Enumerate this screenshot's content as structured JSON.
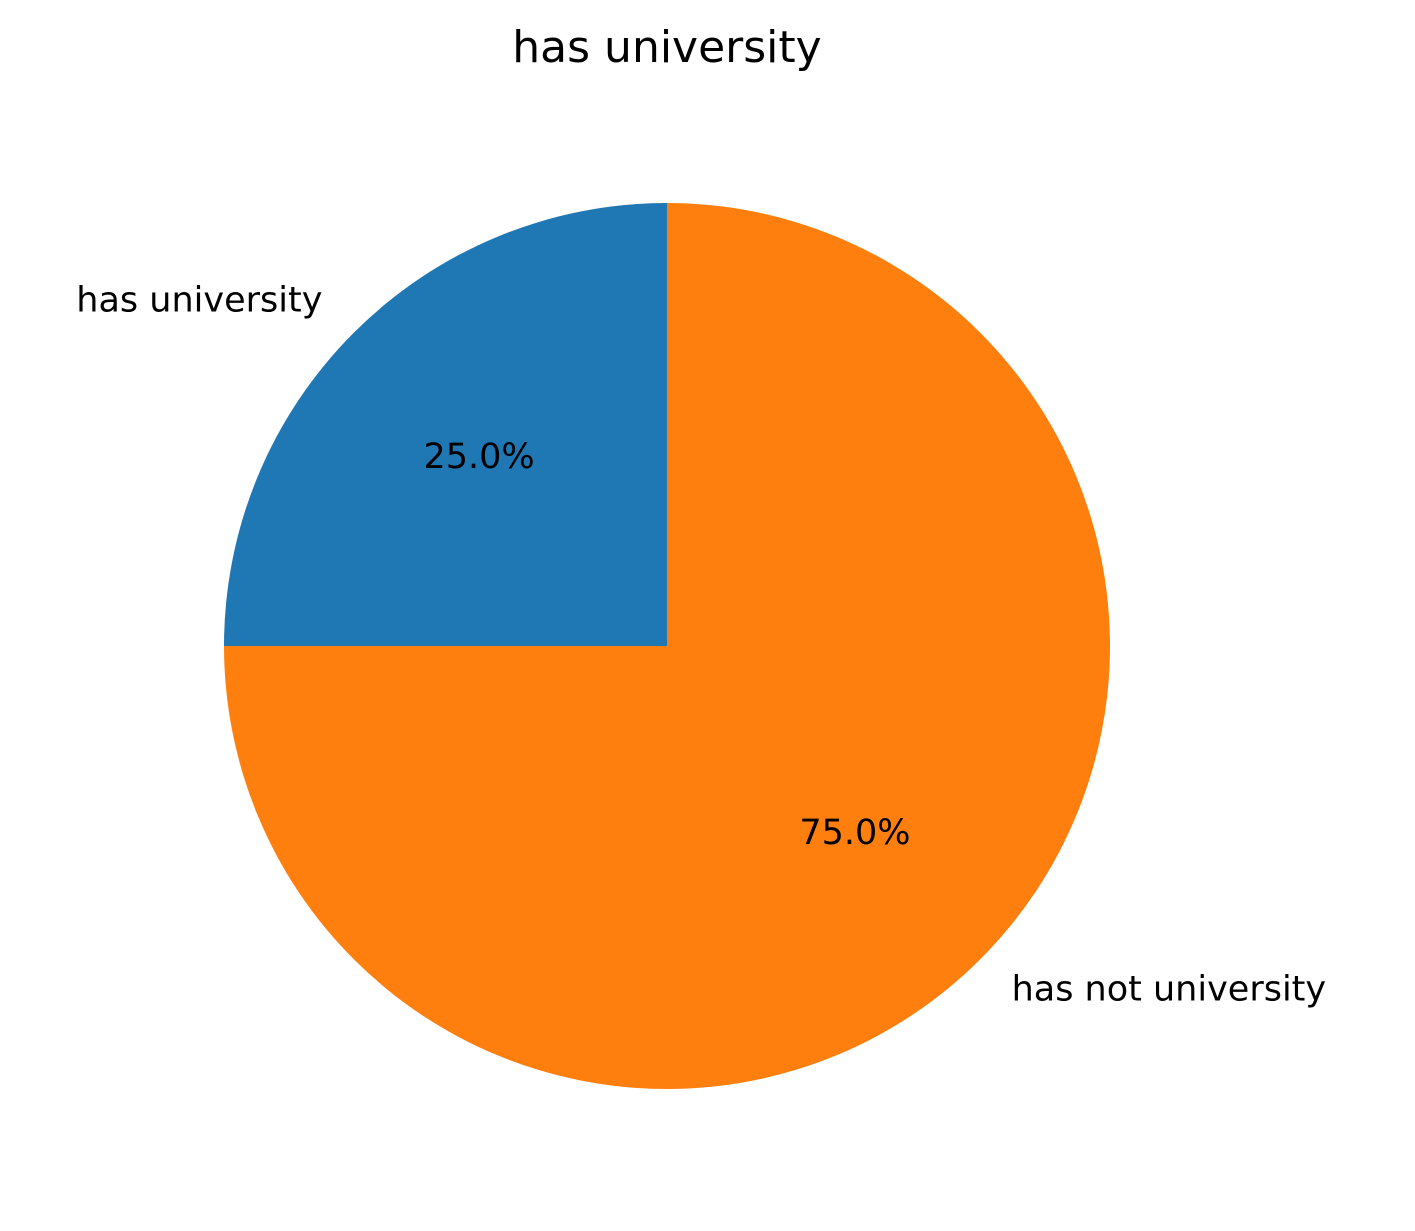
{
  "chart_data": {
    "type": "pie",
    "title": "has university",
    "labels": [
      "has university",
      "has not university"
    ],
    "values": [
      25.0,
      75.0
    ],
    "percent_labels": [
      "25.0%",
      "75.0%"
    ],
    "colors": [
      "#1f77b4",
      "#ff7f0e"
    ],
    "start_angle_deg": 90,
    "direction": "counterclockwise"
  }
}
